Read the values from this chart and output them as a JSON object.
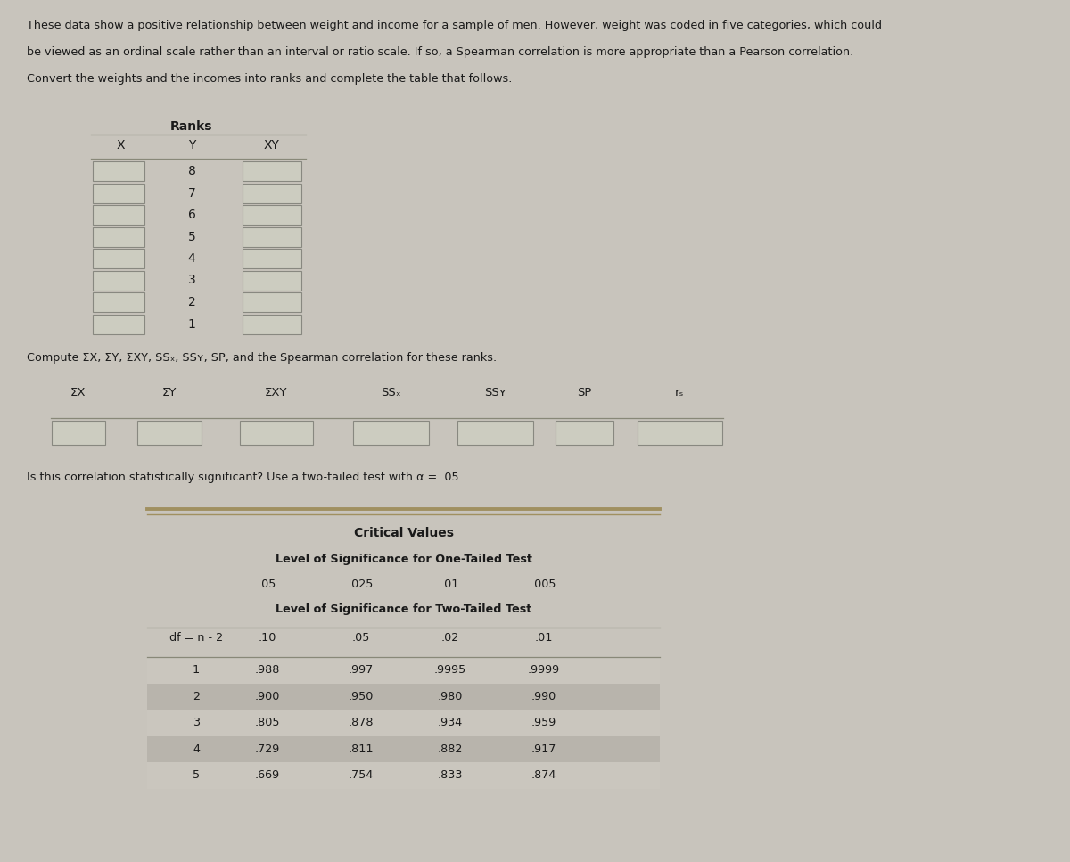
{
  "bg_color": "#c8c4bc",
  "paper_color": "#d4d0c8",
  "box_color": "#ccccc0",
  "box_edge": "#888880",
  "text_color": "#1a1a1a",
  "intro_text": [
    "These data show a positive relationship between weight and income for a sample of men. However, weight was coded in five categories, which could",
    "be viewed as an ordinal scale rather than an interval or ratio scale. If so, a Spearman correlation is more appropriate than a Pearson correlation.",
    "Convert the weights and the incomes into ranks and complete the table that follows."
  ],
  "ranks_label": "Ranks",
  "col_headers": [
    "X",
    "Y",
    "XY"
  ],
  "y_values": [
    8,
    7,
    6,
    5,
    4,
    3,
    2,
    1
  ],
  "compute_text": "Compute ΣX, ΣY, ΣXY, SSₓ, SSʏ, SP, and the Spearman correlation for these ranks.",
  "sum_headers": [
    "ΣX",
    "ΣY",
    "ΣXY",
    "SSₓ",
    "SSʏ",
    "SP",
    "rₛ"
  ],
  "sig_text": "Is this correlation statistically significant? Use a two-tailed test with α = .05.",
  "critical_title": "Critical Values",
  "one_tail_label": "Level of Significance for One-Tailed Test",
  "one_tail_vals": [
    ".05",
    ".025",
    ".01",
    ".005"
  ],
  "two_tail_label": "Level of Significance for Two-Tailed Test",
  "df_header": "df = n - 2",
  "two_tail_vals": [
    ".10",
    ".05",
    ".02",
    ".01"
  ],
  "table_data": [
    [
      1,
      ".988",
      ".997",
      ".9995",
      ".9999"
    ],
    [
      2,
      ".900",
      ".950",
      ".980",
      ".990"
    ],
    [
      3,
      ".805",
      ".878",
      ".934",
      ".959"
    ],
    [
      4,
      ".729",
      ".811",
      ".882",
      ".917"
    ],
    [
      5,
      ".669",
      ".754",
      ".833",
      ".874"
    ]
  ],
  "line_color": "#888878",
  "golden_line": "#a09060"
}
